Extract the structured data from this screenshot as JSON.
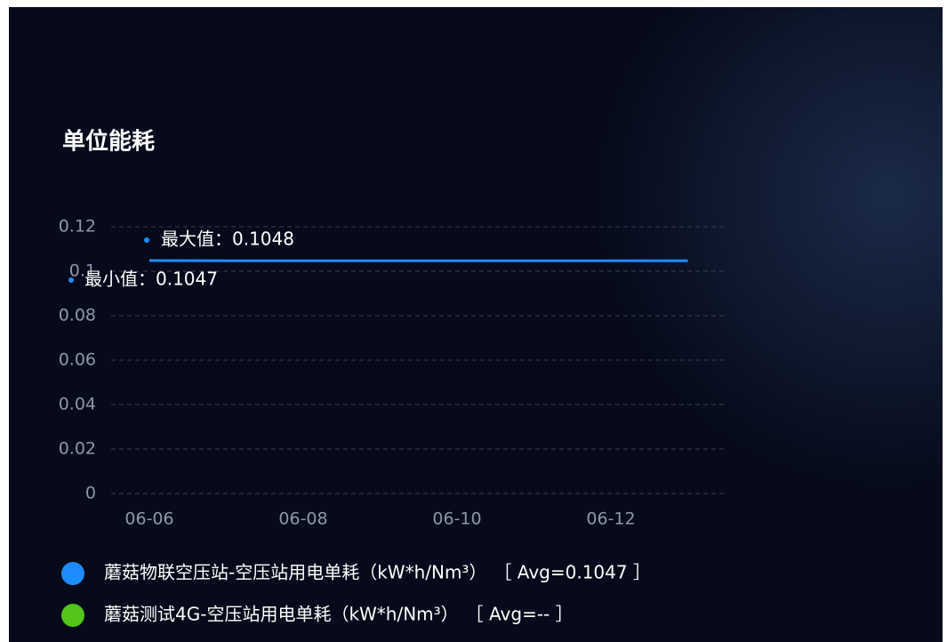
{
  "chart_data": {
    "type": "line",
    "title": "单位能耗",
    "categories": [
      "06-06",
      null,
      "06-08",
      null,
      "06-10",
      null,
      "06-12",
      null
    ],
    "series": [
      {
        "name": "蘑菇物联空压站-空压站用电单耗（kW*h/Nm³）",
        "avg_label": "［ Avg=0.1047 ］",
        "color": "#1e8cff",
        "values": [
          0.1048,
          0.1047,
          0.1047,
          0.1047,
          0.1047,
          0.1047,
          0.1047,
          0.1047
        ]
      },
      {
        "name": "蘑菇测试4G-空压站用电单耗（kW*h/Nm³）",
        "avg_label": "［ Avg=-- ］",
        "color": "#52c41a",
        "values": [
          null,
          null,
          null,
          null,
          null,
          null,
          null,
          null
        ]
      }
    ],
    "annotations": [
      {
        "label": "最大值：0.1048"
      },
      {
        "label": "最小值：0.1047"
      }
    ],
    "ylim": [
      0,
      0.12
    ],
    "yticks": [
      0,
      0.02,
      0.04,
      0.06,
      0.08,
      0.1,
      0.12
    ],
    "grid": true
  }
}
